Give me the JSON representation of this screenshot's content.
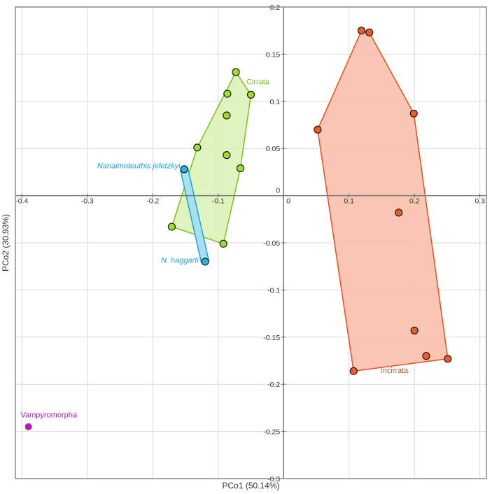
{
  "chart_data": {
    "type": "scatter",
    "xlabel": "PCo1 (50.14%)",
    "ylabel": "PCo2 (30.93%)",
    "xlim": [
      -0.41,
      0.31
    ],
    "ylim": [
      -0.3,
      0.2
    ],
    "x_ticks": [
      {
        "value": -0.4,
        "label": "-0.4"
      },
      {
        "value": -0.3,
        "label": "-0.3"
      },
      {
        "value": -0.2,
        "label": "-0.2"
      },
      {
        "value": -0.1,
        "label": "-0.1"
      },
      {
        "value": 0,
        "label": "0"
      },
      {
        "value": 0.1,
        "label": "0.1"
      },
      {
        "value": 0.2,
        "label": "0.2"
      },
      {
        "value": 0.3,
        "label": "0.3"
      }
    ],
    "y_ticks": [
      {
        "value": 0.2,
        "label": "0.2"
      },
      {
        "value": 0.15,
        "label": "0.15"
      },
      {
        "value": 0.1,
        "label": "0.1"
      },
      {
        "value": 0.05,
        "label": "0.05"
      },
      {
        "value": 0,
        "label": "0"
      },
      {
        "value": -0.05,
        "label": "-0.05"
      },
      {
        "value": -0.1,
        "label": "-0.1"
      },
      {
        "value": -0.15,
        "label": "-0.15"
      },
      {
        "value": -0.2,
        "label": "-0.2"
      },
      {
        "value": -0.25,
        "label": "-0.25"
      },
      {
        "value": -0.3,
        "label": "-0.3"
      }
    ],
    "grid": true,
    "series": [
      {
        "name": "Cirrata",
        "color": "#7cc11f",
        "fill": "#dcf2b8",
        "marker": "#9be12b",
        "label_italic": false,
        "label_anchor": [
          -0.057,
          0.118
        ],
        "hull": true,
        "points": [
          [
            -0.073,
            0.131
          ],
          [
            -0.086,
            0.108
          ],
          [
            -0.05,
            0.107
          ],
          [
            -0.087,
            0.085
          ],
          [
            -0.132,
            0.051
          ],
          [
            -0.087,
            0.043
          ],
          [
            -0.066,
            0.029
          ],
          [
            -0.171,
            -0.033
          ],
          [
            -0.092,
            -0.051
          ]
        ]
      },
      {
        "name": "Incirrata",
        "color": "#ee4b1e",
        "fill": "#f8c0ac",
        "marker": "#f25a2a",
        "label_italic": false,
        "label_anchor": [
          0.148,
          -0.188
        ],
        "hull": true,
        "points": [
          [
            0.119,
            0.175
          ],
          [
            0.131,
            0.173
          ],
          [
            0.199,
            0.087
          ],
          [
            0.052,
            0.07
          ],
          [
            0.176,
            -0.018
          ],
          [
            0.2,
            -0.143
          ],
          [
            0.218,
            -0.17
          ],
          [
            0.251,
            -0.173
          ],
          [
            0.107,
            -0.186
          ]
        ]
      },
      {
        "name": "Nanaimoteuthis jeletzkyi",
        "color": "#1aa6cf",
        "fill": "#a9e0ef",
        "marker": "#2bb5dd",
        "label_italic": true,
        "label_anchor": [
          -0.158,
          0.029
        ],
        "hull": false,
        "points": [
          [
            -0.152,
            0.028
          ]
        ]
      },
      {
        "name": "N. haggarti",
        "color": "#1aa6cf",
        "fill": "#a9e0ef",
        "marker": "#2bb5dd",
        "label_italic": true,
        "label_anchor": [
          -0.13,
          -0.071
        ],
        "hull": false,
        "points": [
          [
            -0.12,
            -0.07
          ]
        ]
      },
      {
        "name": "Vampyromorpha",
        "color": "#b21eb2",
        "fill": "#b21eb2",
        "marker": "#b21eb2",
        "label_italic": false,
        "label_anchor": [
          -0.402,
          -0.235
        ],
        "hull": false,
        "points": [
          [
            -0.39,
            -0.245
          ]
        ]
      }
    ],
    "links": [
      {
        "from": "Nanaimoteuthis jeletzkyi",
        "to": "N. haggarti"
      }
    ]
  }
}
